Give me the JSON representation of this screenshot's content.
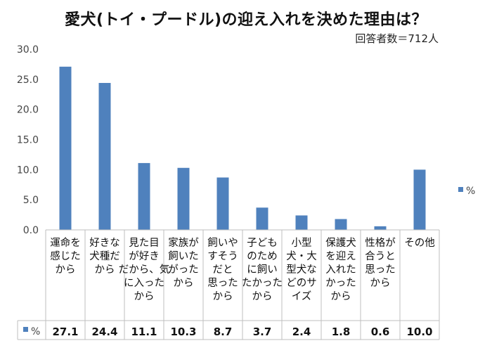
{
  "chart_data": {
    "type": "bar",
    "title": "愛犬(トイ・プードル)の迎え入れを決めた理由は？",
    "subtitle": "回答者数＝712人",
    "ylim": [
      0,
      30
    ],
    "yticks": [
      "0.0",
      "5.0",
      "10.0",
      "15.0",
      "20.0",
      "25.0",
      "30.0"
    ],
    "categories": [
      [
        "運命を",
        "感じた",
        "から"
      ],
      [
        "好きな",
        "犬種だ",
        "から"
      ],
      [
        "見た目",
        "が好き",
        "だから、気",
        "に入った",
        "から"
      ],
      [
        "家族が",
        "飼いた",
        "がった",
        "から"
      ],
      [
        "飼いや",
        "すそう",
        "だと",
        "思った",
        "から"
      ],
      [
        "子ども",
        "のため",
        "に飼い",
        "たかった",
        "から"
      ],
      [
        "小型",
        "犬・大",
        "型犬な",
        "どのサ",
        "イズ"
      ],
      [
        "保護犬",
        "を迎え",
        "入れた",
        "かった",
        "から"
      ],
      [
        "性格が",
        "合うと",
        "思った",
        "から"
      ],
      [
        "その他"
      ]
    ],
    "series": [
      {
        "name": "%",
        "color": "#4f81bd",
        "values": [
          27.1,
          24.4,
          11.1,
          10.3,
          8.7,
          3.7,
          2.4,
          1.8,
          0.6,
          10.0
        ],
        "labels": [
          "27.1",
          "24.4",
          "11.1",
          "10.3",
          "8.7",
          "3.7",
          "2.4",
          "1.8",
          "0.6",
          "10.0"
        ]
      }
    ],
    "legend": {
      "position": "right",
      "label": "%"
    },
    "grid": false
  }
}
